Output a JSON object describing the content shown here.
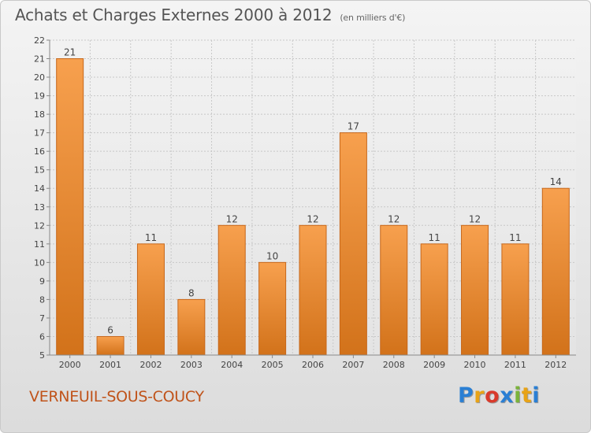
{
  "header": {
    "title": "Achats et Charges Externes 2000 à 2012",
    "subtitle": "(en milliers d'€)"
  },
  "footer": {
    "city": "VERNEUIL-SOUS-COUCY",
    "logo": {
      "letters": [
        "P",
        "r",
        "o",
        "x",
        "i",
        "t",
        "i"
      ],
      "colors": [
        "#2a7fd4",
        "#e8a317",
        "#d93a2b",
        "#2a7fd4",
        "#7bb33a",
        "#e8a317",
        "#2a7fd4"
      ]
    }
  },
  "chart_data": {
    "type": "bar",
    "title": "Achats et Charges Externes 2000 à 2012",
    "subtitle": "(en milliers d'€)",
    "categories": [
      "2000",
      "2001",
      "2002",
      "2003",
      "2004",
      "2005",
      "2006",
      "2007",
      "2008",
      "2009",
      "2010",
      "2011",
      "2012"
    ],
    "values": [
      21,
      6,
      11,
      8,
      12,
      10,
      12,
      17,
      12,
      11,
      12,
      11,
      14
    ],
    "data_labels": [
      "21",
      "6",
      "11",
      "8",
      "12",
      "10",
      "12",
      "17",
      "12",
      "11",
      "12",
      "11",
      "14"
    ],
    "yticks": [
      5,
      6,
      7,
      8,
      9,
      10,
      11,
      12,
      13,
      14,
      15,
      16,
      17,
      18,
      19,
      20,
      21,
      22
    ],
    "ylim": [
      5,
      22
    ],
    "xlabel": "",
    "ylabel": "",
    "grid": true,
    "colors": {
      "bar_top": "#f7a04e",
      "bar_bottom": "#d2721a",
      "bar_edge": "#c7671a",
      "grid": "#c8c8c8",
      "axis": "#888888"
    }
  }
}
